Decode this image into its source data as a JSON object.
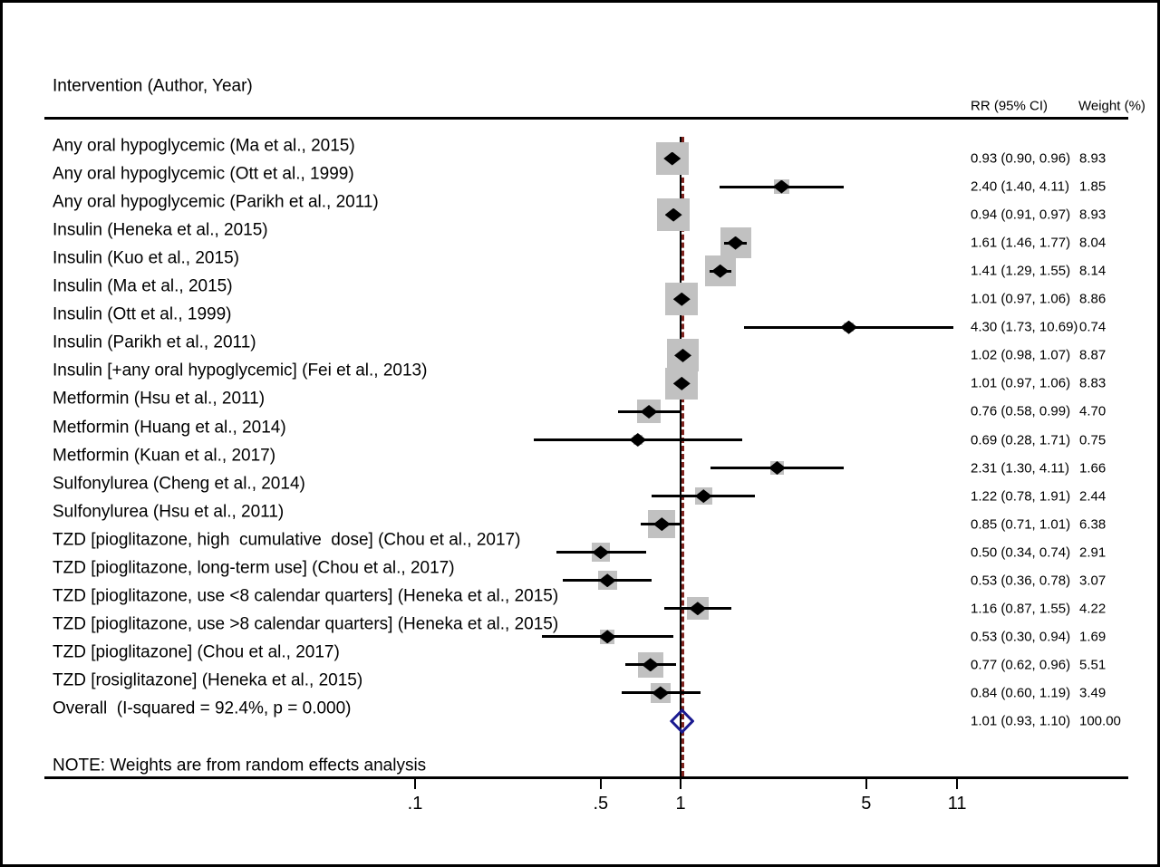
{
  "figure": {
    "col_header_left": "Intervention (Author, Year)",
    "col_header_rr": "RR (95% CI)",
    "col_header_weight": "Weight (%)",
    "note": "NOTE: Weights are from random effects analysis"
  },
  "chart_data": {
    "type": "forest",
    "x_axis": {
      "scale": "log",
      "ticks": [
        0.1,
        0.5,
        1,
        5,
        11
      ],
      "tick_labels": [
        ".1",
        ".5",
        "1",
        "5",
        "11"
      ]
    },
    "null_line_x": 1,
    "overall_line_x": 1.01,
    "colors": {
      "weight_square": "#c1c1c1",
      "point_marker": "#000000",
      "ci_line": "#000000",
      "overall_diamond": "#1a1a90",
      "overall_dashed_line": "#7f241f",
      "text": "#000000"
    },
    "studies": [
      {
        "label": "Any oral hypoglycemic (Ma et al., 2015)",
        "rr": 0.93,
        "ci_low": 0.9,
        "ci_high": 0.96,
        "rr_text": "0.93 (0.90, 0.96)",
        "weight": 8.93,
        "weight_text": "8.93"
      },
      {
        "label": "Any oral hypoglycemic (Ott et al., 1999)",
        "rr": 2.4,
        "ci_low": 1.4,
        "ci_high": 4.11,
        "rr_text": "2.40 (1.40, 4.11)",
        "weight": 1.85,
        "weight_text": "1.85"
      },
      {
        "label": "Any oral hypoglycemic (Parikh et al., 2011)",
        "rr": 0.94,
        "ci_low": 0.91,
        "ci_high": 0.97,
        "rr_text": "0.94 (0.91, 0.97)",
        "weight": 8.93,
        "weight_text": "8.93"
      },
      {
        "label": "Insulin (Heneka et al., 2015)",
        "rr": 1.61,
        "ci_low": 1.46,
        "ci_high": 1.77,
        "rr_text": "1.61 (1.46, 1.77)",
        "weight": 8.04,
        "weight_text": "8.04"
      },
      {
        "label": "Insulin (Kuo et al., 2015)",
        "rr": 1.41,
        "ci_low": 1.29,
        "ci_high": 1.55,
        "rr_text": "1.41 (1.29, 1.55)",
        "weight": 8.14,
        "weight_text": "8.14"
      },
      {
        "label": "Insulin (Ma et al., 2015)",
        "rr": 1.01,
        "ci_low": 0.97,
        "ci_high": 1.06,
        "rr_text": "1.01 (0.97, 1.06)",
        "weight": 8.86,
        "weight_text": "8.86"
      },
      {
        "label": "Insulin (Ott et al., 1999)",
        "rr": 4.3,
        "ci_low": 1.73,
        "ci_high": 10.69,
        "rr_text": "4.30 (1.73, 10.69)",
        "weight": 0.74,
        "weight_text": "0.74"
      },
      {
        "label": "Insulin (Parikh et al., 2011)",
        "rr": 1.02,
        "ci_low": 0.98,
        "ci_high": 1.07,
        "rr_text": "1.02 (0.98, 1.07)",
        "weight": 8.87,
        "weight_text": "8.87"
      },
      {
        "label": "Insulin [+any oral hypoglycemic] (Fei et al., 2013)",
        "rr": 1.01,
        "ci_low": 0.97,
        "ci_high": 1.06,
        "rr_text": "1.01 (0.97, 1.06)",
        "weight": 8.83,
        "weight_text": "8.83"
      },
      {
        "label": "Metformin (Hsu et al., 2011)",
        "rr": 0.76,
        "ci_low": 0.58,
        "ci_high": 0.99,
        "rr_text": "0.76 (0.58, 0.99)",
        "weight": 4.7,
        "weight_text": "4.70"
      },
      {
        "label": "Metformin (Huang et al., 2014)",
        "rr": 0.69,
        "ci_low": 0.28,
        "ci_high": 1.71,
        "rr_text": "0.69 (0.28, 1.71)",
        "weight": 0.75,
        "weight_text": "0.75"
      },
      {
        "label": "Metformin (Kuan et al., 2017)",
        "rr": 2.31,
        "ci_low": 1.3,
        "ci_high": 4.11,
        "rr_text": "2.31 (1.30, 4.11)",
        "weight": 1.66,
        "weight_text": "1.66"
      },
      {
        "label": "Sulfonylurea (Cheng et al., 2014)",
        "rr": 1.22,
        "ci_low": 0.78,
        "ci_high": 1.91,
        "rr_text": "1.22 (0.78, 1.91)",
        "weight": 2.44,
        "weight_text": "2.44"
      },
      {
        "label": "Sulfonylurea (Hsu et al., 2011)",
        "rr": 0.85,
        "ci_low": 0.71,
        "ci_high": 1.01,
        "rr_text": "0.85 (0.71, 1.01)",
        "weight": 6.38,
        "weight_text": "6.38"
      },
      {
        "label": "TZD [pioglitazone, high  cumulative  dose] (Chou et al., 2017)",
        "rr": 0.5,
        "ci_low": 0.34,
        "ci_high": 0.74,
        "rr_text": "0.50 (0.34, 0.74)",
        "weight": 2.91,
        "weight_text": "2.91"
      },
      {
        "label": "TZD [pioglitazone, long-term use] (Chou et al., 2017)",
        "rr": 0.53,
        "ci_low": 0.36,
        "ci_high": 0.78,
        "rr_text": "0.53 (0.36, 0.78)",
        "weight": 3.07,
        "weight_text": "3.07"
      },
      {
        "label": "TZD [pioglitazone, use <8 calendar quarters] (Heneka et al., 2015)",
        "rr": 1.16,
        "ci_low": 0.87,
        "ci_high": 1.55,
        "rr_text": "1.16 (0.87, 1.55)",
        "weight": 4.22,
        "weight_text": "4.22"
      },
      {
        "label": "TZD [pioglitazone, use >8 calendar quarters] (Heneka et al., 2015)",
        "rr": 0.53,
        "ci_low": 0.3,
        "ci_high": 0.94,
        "rr_text": "0.53 (0.30, 0.94)",
        "weight": 1.69,
        "weight_text": "1.69"
      },
      {
        "label": "TZD [pioglitazone] (Chou et al., 2017)",
        "rr": 0.77,
        "ci_low": 0.62,
        "ci_high": 0.96,
        "rr_text": "0.77 (0.62, 0.96)",
        "weight": 5.51,
        "weight_text": "5.51"
      },
      {
        "label": "TZD [rosiglitazone] (Heneka et al., 2015)",
        "rr": 0.84,
        "ci_low": 0.6,
        "ci_high": 1.19,
        "rr_text": "0.84 (0.60, 1.19)",
        "weight": 3.49,
        "weight_text": "3.49"
      }
    ],
    "overall": {
      "label": "Overall  (I-squared = 92.4%, p = 0.000)",
      "rr": 1.01,
      "ci_low": 0.93,
      "ci_high": 1.1,
      "rr_text": "1.01 (0.93, 1.10)",
      "weight_text": "100.00"
    }
  }
}
